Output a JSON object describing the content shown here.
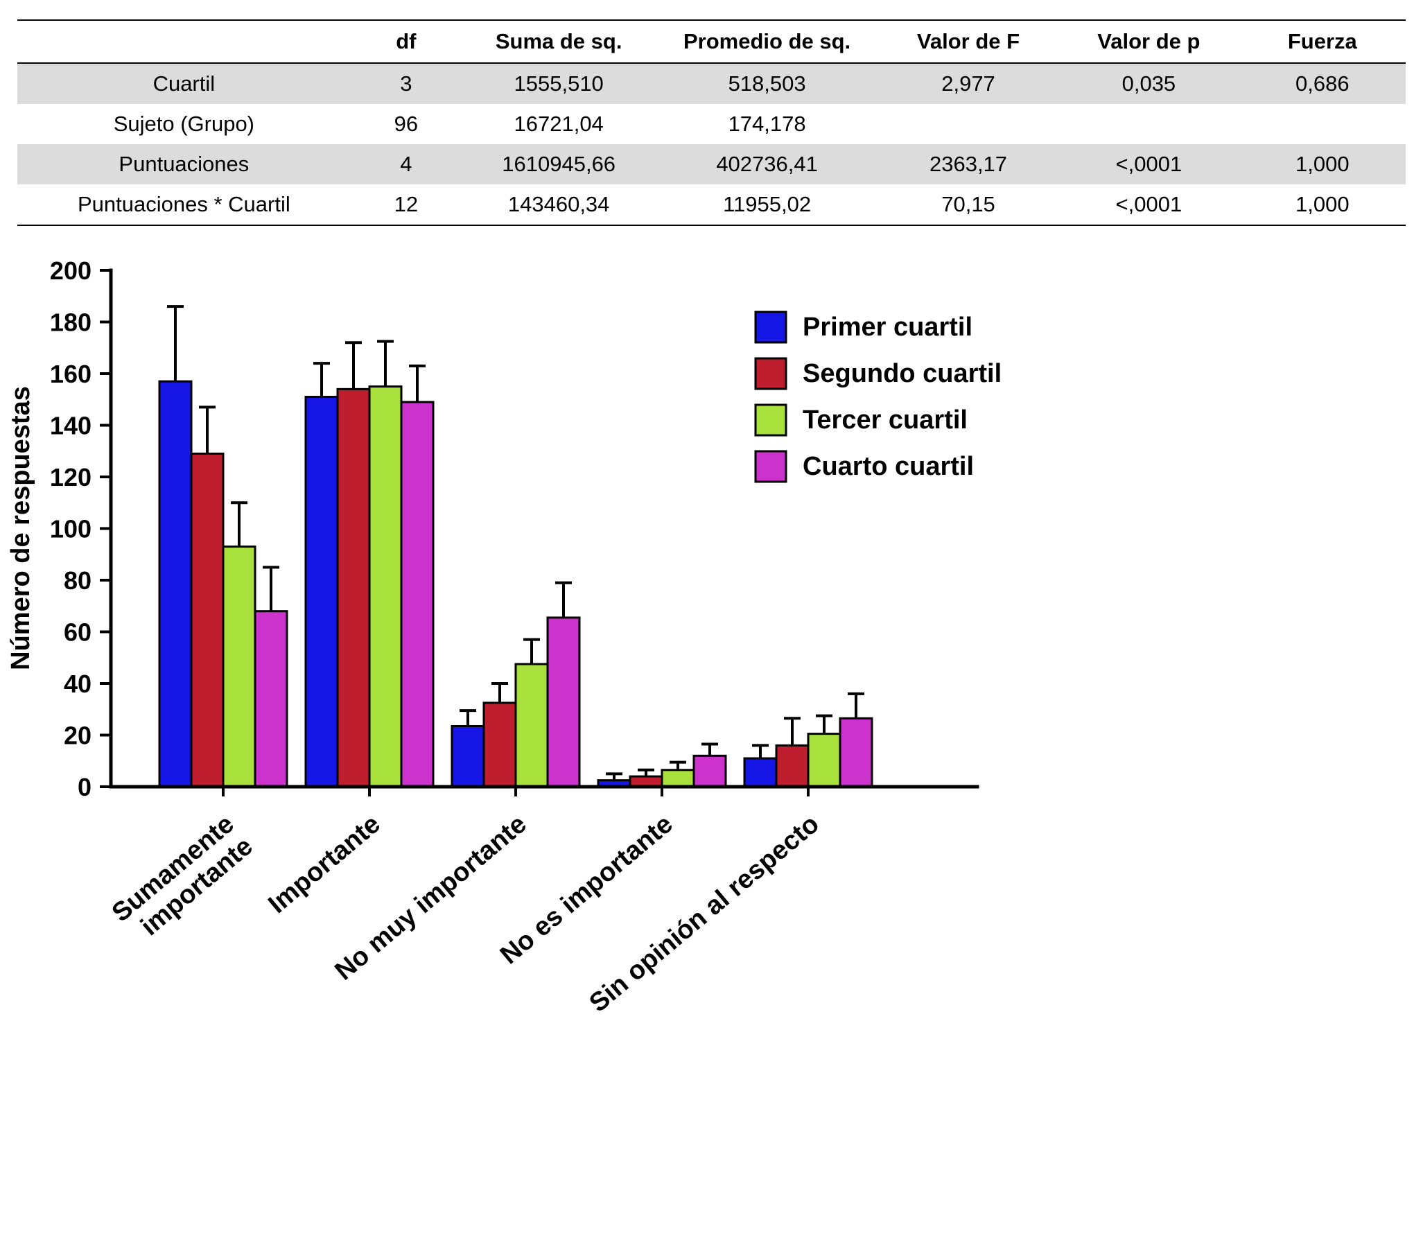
{
  "table": {
    "headers": [
      "",
      "df",
      "Suma de sq.",
      "Promedio de sq.",
      "Valor de F",
      "Valor de p",
      "Fuerza"
    ],
    "rows": [
      {
        "cells": [
          "Cuartil",
          "3",
          "1555,510",
          "518,503",
          "2,977",
          "0,035",
          "0,686"
        ],
        "shaded": true
      },
      {
        "cells": [
          "Sujeto (Grupo)",
          "96",
          "16721,04",
          "174,178",
          "",
          "",
          ""
        ],
        "shaded": false
      },
      {
        "cells": [
          "Puntuaciones",
          "4",
          "1610945,66",
          "402736,41",
          "2363,17",
          "<,0001",
          "1,000"
        ],
        "shaded": true
      },
      {
        "cells": [
          "Puntuaciones * Cuartil",
          "12",
          "143460,34",
          "11955,02",
          "70,15",
          "<,0001",
          "1,000"
        ],
        "shaded": false
      }
    ]
  },
  "chart_data": {
    "type": "bar",
    "title": "",
    "xlabel": "",
    "ylabel": "Número de respuestas",
    "ylim": [
      0,
      200
    ],
    "ytick_step": 20,
    "grid": false,
    "legend_position": "inside-top-right",
    "error_bars": "upper-capped",
    "categories": [
      "Sumamente\nimportante",
      "Importante",
      "No muy importante",
      "No es importante",
      "Sin opinión al respecto"
    ],
    "series": [
      {
        "name": "Primer cuartil",
        "color": "#1616E7",
        "values": [
          157,
          151,
          23.5,
          2.5,
          11
        ],
        "errors": [
          29,
          13,
          6,
          2.5,
          5
        ]
      },
      {
        "name": "Segundo cuartil",
        "color": "#BE1E2D",
        "values": [
          129,
          154,
          32.5,
          4,
          16
        ],
        "errors": [
          18,
          18,
          7.5,
          2.5,
          10.5
        ]
      },
      {
        "name": "Tercer cuartil",
        "color": "#A8E03C",
        "values": [
          93,
          155,
          47.5,
          6.5,
          20.5
        ],
        "errors": [
          17,
          17.5,
          9.5,
          3,
          7
        ]
      },
      {
        "name": "Cuarto cuartil",
        "color": "#CC33CC",
        "values": [
          68,
          149,
          65.5,
          12,
          26.5
        ],
        "errors": [
          17,
          14,
          13.5,
          4.5,
          9.5
        ]
      }
    ]
  }
}
